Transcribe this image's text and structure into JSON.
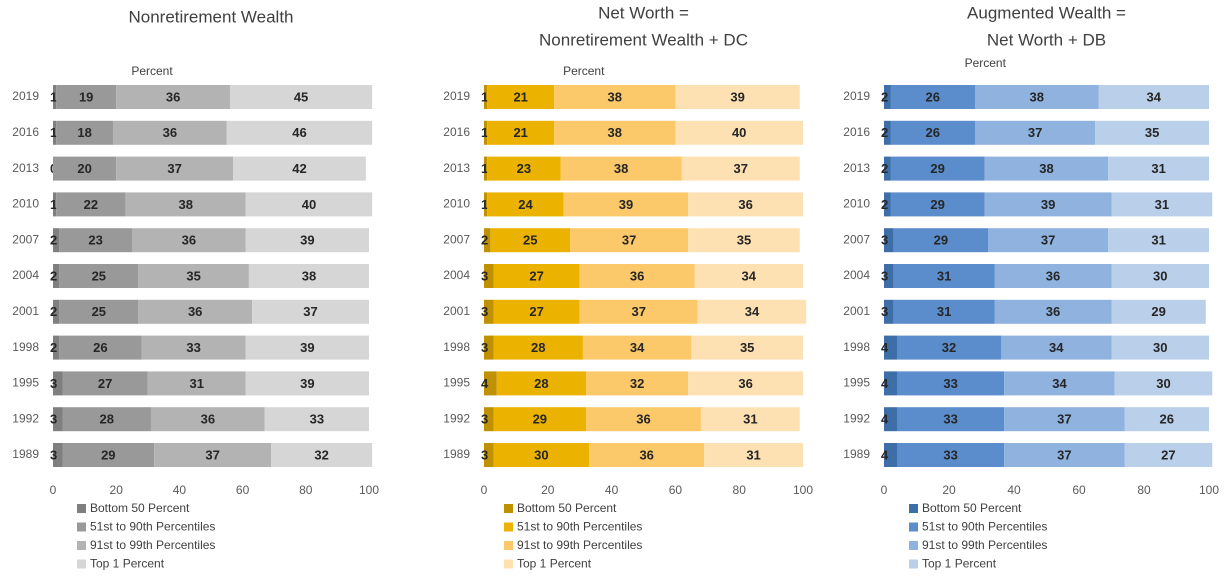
{
  "chart_data": [
    {
      "type": "bar",
      "orientation": "horizontal",
      "stacked": true,
      "title": [
        "Nonretirement Wealth"
      ],
      "x_label": "Percent",
      "categories": [
        "2019",
        "2016",
        "2013",
        "2010",
        "2007",
        "2004",
        "2001",
        "1998",
        "1995",
        "1992",
        "1989"
      ],
      "xlim": [
        0,
        100
      ],
      "xticks": [
        0,
        20,
        40,
        60,
        80,
        100
      ],
      "series": [
        {
          "name": "Bottom 50 Percent",
          "color": "#7f7f7f",
          "values": [
            1,
            1,
            0,
            1,
            2,
            2,
            2,
            2,
            3,
            3,
            3
          ]
        },
        {
          "name": "51st to 90th Percentiles",
          "color": "#999999",
          "values": [
            19,
            18,
            20,
            22,
            23,
            25,
            25,
            26,
            27,
            28,
            29
          ]
        },
        {
          "name": "91st to 99th Percentiles",
          "color": "#b3b3b3",
          "values": [
            36,
            36,
            37,
            38,
            36,
            35,
            36,
            33,
            31,
            36,
            37
          ]
        },
        {
          "name": "Top 1 Percent",
          "color": "#d6d6d6",
          "values": [
            45,
            46,
            42,
            40,
            39,
            38,
            37,
            39,
            39,
            33,
            32
          ]
        }
      ]
    },
    {
      "type": "bar",
      "orientation": "horizontal",
      "stacked": true,
      "title": [
        "Net Worth =",
        "Nonretirement Wealth + DC"
      ],
      "x_label": "Percent",
      "categories": [
        "2019",
        "2016",
        "2013",
        "2010",
        "2007",
        "2004",
        "2001",
        "1998",
        "1995",
        "1992",
        "1989"
      ],
      "xlim": [
        0,
        100
      ],
      "xticks": [
        0,
        20,
        40,
        60,
        80,
        100
      ],
      "series": [
        {
          "name": "Bottom 50 Percent",
          "color": "#bf9000",
          "values": [
            1,
            1,
            1,
            1,
            2,
            3,
            3,
            3,
            4,
            3,
            3
          ]
        },
        {
          "name": "51st to 90th Percentiles",
          "color": "#ecb200",
          "values": [
            21,
            21,
            23,
            24,
            25,
            27,
            27,
            28,
            28,
            29,
            30
          ]
        },
        {
          "name": "91st to 99th Percentiles",
          "color": "#fcc96a",
          "values": [
            38,
            38,
            38,
            39,
            37,
            36,
            37,
            34,
            32,
            36,
            36
          ]
        },
        {
          "name": "Top 1 Percent",
          "color": "#fde1b3",
          "values": [
            39,
            40,
            37,
            36,
            35,
            34,
            34,
            35,
            36,
            31,
            31
          ]
        }
      ]
    },
    {
      "type": "bar",
      "orientation": "horizontal",
      "stacked": true,
      "title": [
        "Augmented Wealth =",
        "Net Worth + DB"
      ],
      "x_label": "Percent",
      "categories": [
        "2019",
        "2016",
        "2013",
        "2010",
        "2007",
        "2004",
        "2001",
        "1998",
        "1995",
        "1992",
        "1989"
      ],
      "xlim": [
        0,
        100
      ],
      "xticks": [
        0,
        20,
        40,
        60,
        80,
        100
      ],
      "series": [
        {
          "name": "Bottom 50 Percent",
          "color": "#3d6ea8",
          "values": [
            2,
            2,
            2,
            2,
            3,
            3,
            3,
            4,
            4,
            4,
            4
          ]
        },
        {
          "name": "51st to 90th Percentiles",
          "color": "#5b8dcc",
          "values": [
            26,
            26,
            29,
            29,
            29,
            31,
            31,
            32,
            33,
            33,
            33
          ]
        },
        {
          "name": "91st to 99th Percentiles",
          "color": "#8fb2de",
          "values": [
            38,
            37,
            38,
            39,
            37,
            36,
            36,
            34,
            34,
            37,
            37
          ]
        },
        {
          "name": "Top 1 Percent",
          "color": "#b9cfea",
          "values": [
            34,
            35,
            31,
            31,
            31,
            30,
            29,
            30,
            30,
            26,
            27
          ]
        }
      ]
    }
  ]
}
